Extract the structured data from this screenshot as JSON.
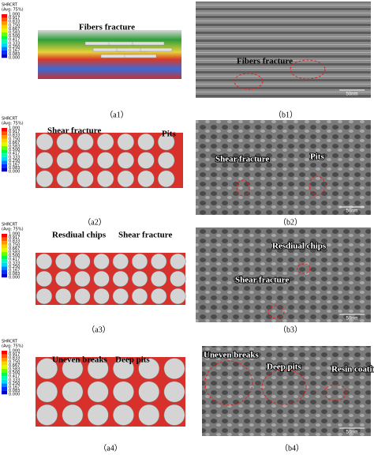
{
  "panels": [
    {
      "caption": "（a1）",
      "legend": {
        "title": "SHRCRT",
        "subtitle": "(Avg: 75%)",
        "values": [
          "1.000",
          "0.917",
          "0.833",
          "0.750",
          "0.667",
          "0.583",
          "0.500",
          "0.417",
          "0.333",
          "0.250",
          "0.167",
          "0.083",
          "0.000"
        ]
      },
      "annotations": [
        "Fibers fracture"
      ]
    },
    {
      "caption": "（b1）",
      "annotations": [
        "Fibers fracture"
      ],
      "scale_bar": "50nm"
    },
    {
      "caption": "（a2）",
      "legend": {
        "title": "SHRCRT",
        "subtitle": "(Avg: 75%)",
        "values": [
          "1.000",
          "0.917",
          "0.833",
          "0.750",
          "0.667",
          "0.583",
          "0.500",
          "0.417",
          "0.333",
          "0.250",
          "0.167",
          "0.083",
          "0.000"
        ]
      },
      "annotations": [
        "Shear fracture",
        "Pits"
      ]
    },
    {
      "caption": "（b2）",
      "annotations": [
        "Shear fracture",
        "Pits"
      ],
      "scale_bar": "50nm"
    },
    {
      "caption": "（a3）",
      "legend": {
        "title": "SHRCRT",
        "subtitle": "(Avg: 75%)",
        "values": [
          "1.000",
          "0.917",
          "0.833",
          "0.750",
          "0.667",
          "0.583",
          "0.500",
          "0.417",
          "0.333",
          "0.250",
          "0.167",
          "0.083",
          "0.000"
        ]
      },
      "annotations": [
        "Resdiual chips",
        "Shear fracture"
      ]
    },
    {
      "caption": "（b3）",
      "annotations": [
        "Resdiual chips",
        "Shear fracture"
      ],
      "scale_bar": "50nm"
    },
    {
      "caption": "（a4）",
      "legend": {
        "title": "SHRCRT",
        "subtitle": "(Avg: 75%)",
        "values": [
          "1.000",
          "0.917",
          "0.833",
          "0.750",
          "0.667",
          "0.583",
          "0.500",
          "0.417",
          "0.333",
          "0.250",
          "0.167",
          "0.083",
          "0.000"
        ]
      },
      "annotations": [
        "Uneven breaks",
        "Deep pits"
      ]
    },
    {
      "caption": "（b4）",
      "annotations": [
        "Uneven breaks",
        "Deep pits",
        "Resin coating"
      ],
      "scale_bar": "50nm"
    }
  ]
}
